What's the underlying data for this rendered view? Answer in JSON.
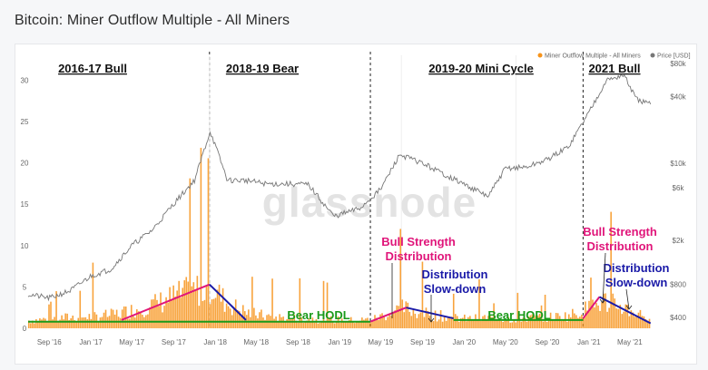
{
  "title": "Bitcoin: Miner Outflow Multiple - All Miners",
  "watermark": "glassnode",
  "legend": [
    {
      "label": "Miner Outflow Multiple - All Miners",
      "color": "#f7931a"
    },
    {
      "label": "Price [USD]",
      "color": "#777777"
    }
  ],
  "chart_data": {
    "type": "line",
    "x_ticks": [
      "Sep '16",
      "Jan '17",
      "May '17",
      "Sep '17",
      "Jan '18",
      "May '18",
      "Sep '18",
      "Jan '19",
      "May '19",
      "Sep '19",
      "Jan '20",
      "May '20",
      "Sep '20",
      "Jan '21",
      "May '21"
    ],
    "y_left_ticks": [
      0,
      5,
      10,
      15,
      20,
      25,
      30
    ],
    "y_left_lim": [
      0,
      33
    ],
    "y_right_ticks": [
      "$400",
      "$800",
      "$2k",
      "$6k",
      "$10k",
      "$40k",
      "$80k"
    ],
    "y_right_values": [
      400,
      800,
      2000,
      6000,
      10000,
      40000,
      80000
    ],
    "y_right_scale": "log",
    "series": [
      {
        "name": "Miner Outflow Multiple - All Miners",
        "color": "#f7931a",
        "axis": "left",
        "x": [
          "2016-07-01",
          "2016-09-01",
          "2016-11-01",
          "2017-01-01",
          "2017-03-01",
          "2017-05-01",
          "2017-07-01",
          "2017-09-01",
          "2017-11-01",
          "2017-12-15",
          "2018-02-01",
          "2018-04-01",
          "2018-06-01",
          "2018-08-01",
          "2018-10-01",
          "2018-12-01",
          "2019-02-01",
          "2019-04-01",
          "2019-06-01",
          "2019-07-01",
          "2019-09-01",
          "2019-11-01",
          "2020-01-01",
          "2020-03-01",
          "2020-05-01",
          "2020-07-01",
          "2020-09-01",
          "2020-11-01",
          "2021-01-01",
          "2021-02-15",
          "2021-04-01",
          "2021-06-01",
          "2021-07-01"
        ],
        "values": [
          1.0,
          1.2,
          1.4,
          1.5,
          1.7,
          2.3,
          3.0,
          4.0,
          4.8,
          5.5,
          3.2,
          2.0,
          1.5,
          1.3,
          1.2,
          1.1,
          1.0,
          1.1,
          2.0,
          2.6,
          1.9,
          1.5,
          1.2,
          1.3,
          1.2,
          1.3,
          1.4,
          1.6,
          2.6,
          3.5,
          2.8,
          1.8,
          1.2
        ]
      },
      {
        "name": "Price [USD]",
        "color": "#777777",
        "axis": "right",
        "x": [
          "2016-07-01",
          "2016-09-01",
          "2016-11-01",
          "2017-01-01",
          "2017-03-01",
          "2017-05-01",
          "2017-07-01",
          "2017-09-01",
          "2017-11-01",
          "2017-12-17",
          "2018-02-06",
          "2018-04-01",
          "2018-06-01",
          "2018-08-01",
          "2018-10-01",
          "2018-12-15",
          "2019-03-01",
          "2019-05-01",
          "2019-06-26",
          "2019-09-01",
          "2019-12-01",
          "2020-03-12",
          "2020-05-01",
          "2020-07-01",
          "2020-09-01",
          "2020-11-01",
          "2021-01-01",
          "2021-02-20",
          "2021-04-14",
          "2021-05-20",
          "2021-07-01"
        ],
        "values": [
          650,
          600,
          700,
          950,
          1100,
          1800,
          2500,
          4300,
          7000,
          19500,
          7000,
          7000,
          6500,
          6500,
          6400,
          3300,
          3900,
          5800,
          12000,
          10000,
          7200,
          5000,
          9000,
          9200,
          10800,
          14000,
          29000,
          56000,
          63000,
          38000,
          34000
        ]
      }
    ],
    "annotations": {
      "eras": [
        {
          "label": "2016-17 Bull",
          "from": "2016-07-01",
          "to": "2017-12-15"
        },
        {
          "label": "2018-19 Bear",
          "from": "2017-12-15",
          "to": "2019-04-01"
        },
        {
          "label": "2019-20 Mini Cycle",
          "from": "2019-04-01",
          "to": "2020-12-15"
        },
        {
          "label": "2021 Bull",
          "from": "2020-12-15",
          "to": "2021-07-01"
        }
      ],
      "dividers": [
        "2017-12-15",
        "2019-04-01",
        "2020-12-15"
      ],
      "notes": [
        {
          "text": "Bear HODL",
          "color": "#1a9a1a"
        },
        {
          "text": "Bull Strength Distribution",
          "lines": [
            "Bull Strength",
            "Distribution"
          ],
          "color": "#e0157a"
        },
        {
          "text": "Distribution Slow-down",
          "lines": [
            "Distribution",
            "Slow-down"
          ],
          "color": "#1a1aa8"
        },
        {
          "text": "Bear HODL",
          "color": "#1a9a1a"
        },
        {
          "text": "Bull Strength Distribution",
          "lines": [
            "Bull Strength",
            "Distribution"
          ],
          "color": "#e0157a"
        },
        {
          "text": "Distribution Slow-down",
          "lines": [
            "Distribution",
            "Slow-down"
          ],
          "color": "#1a1aa8"
        }
      ]
    },
    "trend_lines": [
      {
        "color": "#e0157a",
        "points": [
          [
            "2017-04-01",
            1.0
          ],
          [
            "2017-12-15",
            5.3
          ]
        ]
      },
      {
        "color": "#1a1aa8",
        "points": [
          [
            "2017-12-15",
            5.3
          ],
          [
            "2018-04-01",
            1.0
          ]
        ]
      },
      {
        "color": "#1a9a1a",
        "points": [
          [
            "2016-07-01",
            0.8
          ],
          [
            "2019-04-01",
            0.8
          ]
        ]
      },
      {
        "color": "#e0157a",
        "points": [
          [
            "2019-04-01",
            0.8
          ],
          [
            "2019-07-15",
            2.5
          ]
        ]
      },
      {
        "color": "#1a1aa8",
        "points": [
          [
            "2019-07-15",
            2.5
          ],
          [
            "2019-12-01",
            1.2
          ]
        ]
      },
      {
        "color": "#1a9a1a",
        "points": [
          [
            "2019-12-01",
            1.0
          ],
          [
            "2020-12-15",
            1.0
          ]
        ]
      },
      {
        "color": "#e0157a",
        "points": [
          [
            "2020-12-15",
            1.2
          ],
          [
            "2021-02-01",
            3.8
          ]
        ]
      },
      {
        "color": "#1a1aa8",
        "points": [
          [
            "2021-02-01",
            3.8
          ],
          [
            "2021-07-01",
            0.6
          ]
        ]
      }
    ]
  }
}
